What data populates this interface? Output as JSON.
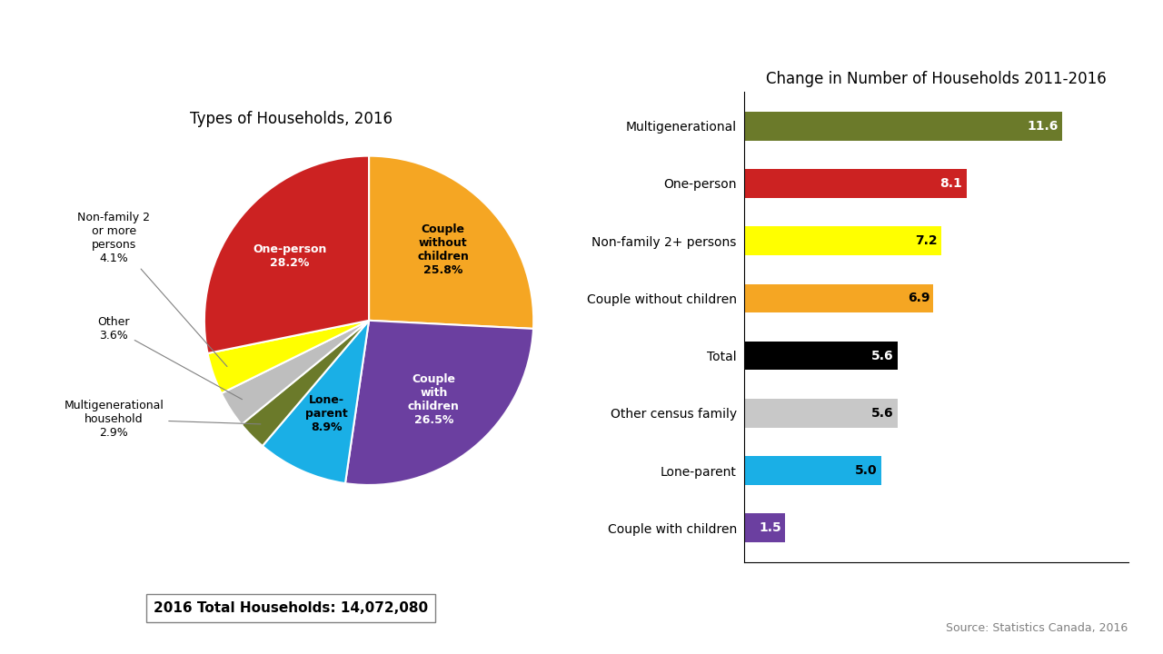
{
  "chart_data": [
    {
      "type": "pie",
      "title": "Types of Households, 2016",
      "categories": [
        "Couple\nwithout\nchildren\n25.8%",
        "Couple\nwith\nchildren\n26.5%",
        "Lone-\nparent\n8.9%",
        "Multigenerational\nhousehold\n2.9%",
        "Other\n3.6%",
        "Non-family 2\nor more\npersons\n4.1%",
        "One-person\n28.2%"
      ],
      "values": [
        25.8,
        26.5,
        8.9,
        2.9,
        3.6,
        4.1,
        28.2
      ],
      "colors": [
        "#F5A623",
        "#6B3FA0",
        "#1AAFE6",
        "#6B7A2A",
        "#BEBEBE",
        "#FFFF00",
        "#CC2222"
      ],
      "annotations": [
        "2016 Total Households: 14,072,080"
      ]
    },
    {
      "type": "bar",
      "orientation": "horizontal",
      "title": "Change in Number of Households 2011-2016",
      "categories": [
        "Multigenerational",
        "One-person",
        "Non-family 2+ persons",
        "Couple without children",
        "Total",
        "Other census family",
        "Lone-parent",
        "Couple with children"
      ],
      "values": [
        11.6,
        8.1,
        7.2,
        6.9,
        5.6,
        5.6,
        5.0,
        1.5
      ],
      "colors": [
        "#6B7A2A",
        "#CC2222",
        "#FFFF00",
        "#F5A623",
        "#000000",
        "#C8C8C8",
        "#1AAFE6",
        "#6B3FA0"
      ],
      "xlim": [
        0,
        14
      ],
      "xticks": [],
      "tick_labels": "y",
      "data_labels": true,
      "annotations": [
        "Source: Statistics Canada, 2016"
      ]
    }
  ]
}
